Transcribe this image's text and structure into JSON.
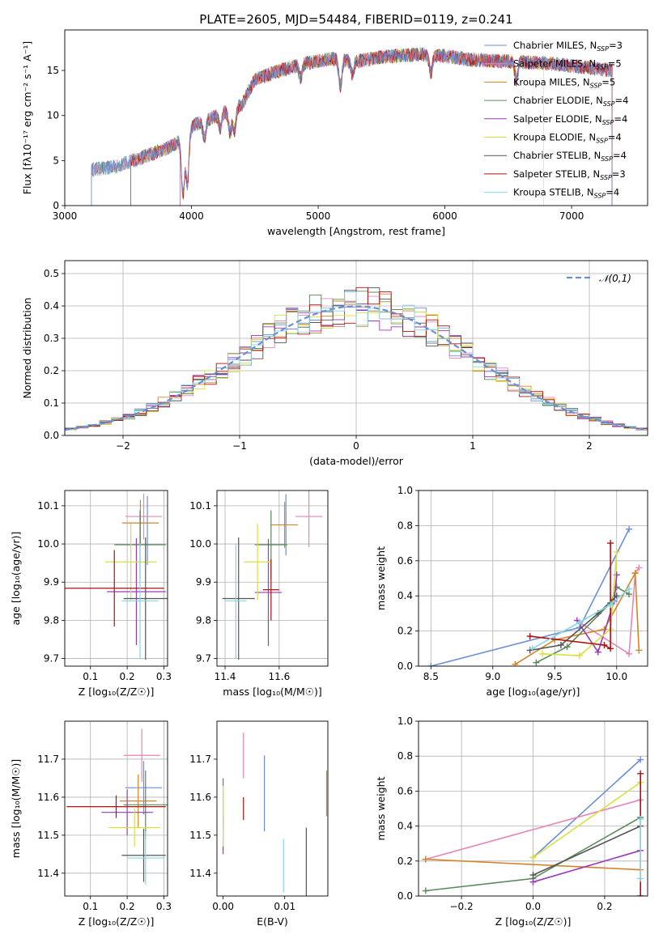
{
  "title": "PLATE=2605, MJD=54484, FIBERID=0119, z=0.241",
  "models": [
    {
      "name": "Chabrier MILES",
      "nssp": "3",
      "color": "#6a8fd8"
    },
    {
      "name": "Salpeter MILES",
      "nssp": "5",
      "color": "#e885b8"
    },
    {
      "name": "Kroupa MILES",
      "nssp": "5",
      "color": "#d4842a"
    },
    {
      "name": "Chabrier ELODIE",
      "nssp": "4",
      "color": "#5a8a5a"
    },
    {
      "name": "Salpeter ELODIE",
      "nssp": "4",
      "color": "#9a3ab8"
    },
    {
      "name": "Kroupa ELODIE",
      "nssp": "4",
      "color": "#d8e040"
    },
    {
      "name": "Chabrier STELIB",
      "nssp": "4",
      "color": "#555555"
    },
    {
      "name": "Salpeter STELIB",
      "nssp": "3",
      "color": "#b01010"
    },
    {
      "name": "Kroupa STELIB",
      "nssp": "4",
      "color": "#80d8e8"
    }
  ],
  "chart_data": [
    {
      "id": "spectrum",
      "type": "line",
      "xlabel": "wavelength [Angstrom, rest frame]",
      "ylabel": "Flux [fλ10⁻¹⁷ erg cm⁻² s⁻¹ A⁻¹]",
      "xlim": [
        3000,
        7600
      ],
      "ylim": [
        0,
        19.5
      ],
      "xticks": [
        3000,
        4000,
        5000,
        6000,
        7000
      ],
      "yticks": [
        0,
        5,
        10,
        15
      ],
      "x_start": 3210,
      "x_end": 7320,
      "continuum": [
        [
          3210,
          4.0
        ],
        [
          3400,
          4.3
        ],
        [
          3600,
          5.3
        ],
        [
          3800,
          6.3
        ],
        [
          3950,
          7.5
        ],
        [
          4000,
          8.8
        ],
        [
          4200,
          10.0
        ],
        [
          4400,
          11.2
        ],
        [
          4500,
          14.0
        ],
        [
          4700,
          15.0
        ],
        [
          4900,
          15.8
        ],
        [
          5100,
          16.3
        ],
        [
          5300,
          16.0
        ],
        [
          5500,
          16.5
        ],
        [
          5800,
          16.8
        ],
        [
          6000,
          16.6
        ],
        [
          6200,
          16.2
        ],
        [
          6500,
          16.0
        ],
        [
          6800,
          15.8
        ],
        [
          7000,
          15.5
        ],
        [
          7320,
          15.0
        ]
      ],
      "absorption_lines": [
        [
          3933,
          6.0
        ],
        [
          3968,
          5.5
        ],
        [
          4102,
          2.0
        ],
        [
          4227,
          1.5
        ],
        [
          4304,
          2.5
        ],
        [
          4340,
          2.5
        ],
        [
          4861,
          1.5
        ],
        [
          5175,
          3.0
        ],
        [
          5270,
          1.5
        ],
        [
          5890,
          2.0
        ],
        [
          6563,
          2.0
        ]
      ],
      "grid": false,
      "legend": "upper right"
    },
    {
      "id": "residuals",
      "type": "histogram",
      "xlabel": "(data-model)/error",
      "ylabel": "Normed distribution",
      "xlim": [
        -2.5,
        2.5
      ],
      "ylim": [
        0,
        0.54
      ],
      "xticks": [
        -2,
        -1,
        0,
        1,
        2
      ],
      "yticks": [
        0.0,
        0.1,
        0.2,
        0.3,
        0.4,
        0.5
      ],
      "reference": {
        "label": "𝒩(0,1)",
        "color": "#6a8fd8"
      },
      "bin_width": 0.1,
      "grid": true,
      "legend": "upper right"
    },
    {
      "id": "age-vs-Z",
      "type": "scatter",
      "xlabel": "Z [log₁₀(Z/Z☉)]",
      "ylabel": "age  [log₁₀(age/yr)]",
      "xlim": [
        0.03,
        0.31
      ],
      "ylim": [
        9.68,
        10.14
      ],
      "xticks": [
        0.1,
        0.2,
        0.3
      ],
      "yticks": [
        9.7,
        9.8,
        9.9,
        10.0,
        10.1
      ],
      "points": [
        {
          "model": 0,
          "x": 0.255,
          "y": 10.035,
          "xerr": 0.0,
          "yerr": 0.09
        },
        {
          "model": 1,
          "x": 0.245,
          "y": 10.072,
          "xerr": 0.05,
          "yerr": 0.06
        },
        {
          "model": 2,
          "x": 0.236,
          "y": 10.055,
          "xerr": 0.05,
          "yerr": 0.06
        },
        {
          "model": 3,
          "x": 0.235,
          "y": 9.998,
          "xerr": 0.07,
          "yerr": 0.09
        },
        {
          "model": 4,
          "x": 0.225,
          "y": 9.875,
          "xerr": 0.08,
          "yerr": 0.14
        },
        {
          "model": 5,
          "x": 0.21,
          "y": 9.953,
          "xerr": 0.07,
          "yerr": 0.1
        },
        {
          "model": 6,
          "x": 0.25,
          "y": 9.857,
          "xerr": 0.06,
          "yerr": 0.16
        },
        {
          "model": 7,
          "x": 0.165,
          "y": 9.884,
          "xerr": 0.135,
          "yerr": 0.1
        },
        {
          "model": 8,
          "x": 0.235,
          "y": 9.851,
          "xerr": 0.05,
          "yerr": 0.15
        }
      ],
      "grid": true
    },
    {
      "id": "age-vs-mass",
      "type": "scatter",
      "xlabel": "mass [log₁₀(M/M☉)]",
      "ylabel": "",
      "xlim": [
        11.37,
        11.78
      ],
      "ylim": [
        9.68,
        10.14
      ],
      "xticks": [
        11.4,
        11.6
      ],
      "yticks": [
        9.7,
        9.8,
        9.9,
        10.0,
        10.1
      ],
      "points": [
        {
          "model": 0,
          "x": 11.625,
          "y": 10.05,
          "xerr": 0.0,
          "yerr": 0.08
        },
        {
          "model": 1,
          "x": 11.71,
          "y": 10.072,
          "xerr": 0.05,
          "yerr": 0.08
        },
        {
          "model": 2,
          "x": 11.62,
          "y": 10.05,
          "xerr": 0.05,
          "yerr": 0.06
        },
        {
          "model": 3,
          "x": 11.57,
          "y": 9.998,
          "xerr": 0.06,
          "yerr": 0.09
        },
        {
          "model": 4,
          "x": 11.56,
          "y": 9.873,
          "xerr": 0.05,
          "yerr": 0.14
        },
        {
          "model": 5,
          "x": 11.52,
          "y": 9.953,
          "xerr": 0.05,
          "yerr": 0.1
        },
        {
          "model": 6,
          "x": 11.45,
          "y": 9.857,
          "xerr": 0.06,
          "yerr": 0.16
        },
        {
          "model": 7,
          "x": 11.57,
          "y": 9.88,
          "xerr": 0.03,
          "yerr": 0.08
        },
        {
          "model": 8,
          "x": 11.44,
          "y": 9.851,
          "xerr": 0.04,
          "yerr": 0.15
        }
      ],
      "grid": true
    },
    {
      "id": "weight-vs-age",
      "type": "line",
      "xlabel": "age  [log₁₀(age/yr)]",
      "ylabel": "mass weight",
      "xlim": [
        8.4,
        10.25
      ],
      "ylim": [
        0.0,
        1.0
      ],
      "xticks": [
        8.5,
        9.0,
        9.5,
        10.0
      ],
      "yticks": [
        0.0,
        0.2,
        0.4,
        0.6,
        0.8,
        1.0
      ],
      "series": [
        {
          "model": 0,
          "x": [
            8.5,
            9.7,
            10.1
          ],
          "y": [
            0.0,
            0.22,
            0.78
          ]
        },
        {
          "model": 1,
          "x": [
            9.7,
            10.1,
            10.15,
            10.18
          ],
          "y": [
            0.25,
            0.07,
            0.53,
            0.56
          ]
        },
        {
          "model": 2,
          "x": [
            9.18,
            9.5,
            9.9,
            10.15,
            10.18
          ],
          "y": [
            0.01,
            0.15,
            0.21,
            0.53,
            0.09
          ]
        },
        {
          "model": 3,
          "x": [
            9.35,
            9.6,
            9.95,
            10.0,
            10.1
          ],
          "y": [
            0.02,
            0.11,
            0.36,
            0.45,
            0.41
          ]
        },
        {
          "model": 4,
          "x": [
            9.68,
            9.85,
            9.98,
            10.0
          ],
          "y": [
            0.26,
            0.08,
            0.37,
            0.52
          ]
        },
        {
          "model": 5,
          "x": [
            9.4,
            9.7,
            9.95,
            10.0
          ],
          "y": [
            0.07,
            0.06,
            0.21,
            0.65
          ]
        },
        {
          "model": 6,
          "x": [
            9.3,
            9.55,
            9.85,
            10.0
          ],
          "y": [
            0.09,
            0.12,
            0.3,
            0.4
          ]
        },
        {
          "model": 7,
          "x": [
            9.3,
            9.9,
            9.95,
            9.95
          ],
          "y": [
            0.17,
            0.12,
            0.1,
            0.7
          ]
        },
        {
          "model": 8,
          "x": [
            9.32,
            9.7,
            9.95,
            10.1
          ],
          "y": [
            0.1,
            0.25,
            0.35,
            0.44
          ]
        }
      ],
      "grid": true
    },
    {
      "id": "mass-vs-Z",
      "type": "scatter",
      "xlabel": "Z [log₁₀(Z/Z☉)]",
      "ylabel": "mass [log₁₀(M/M☉)]",
      "xlim": [
        0.03,
        0.31
      ],
      "ylim": [
        11.34,
        11.8
      ],
      "xticks": [
        0.1,
        0.2,
        0.3
      ],
      "yticks": [
        11.4,
        11.5,
        11.6,
        11.7
      ],
      "points": [
        {
          "model": 0,
          "x": 0.245,
          "y": 11.625,
          "xerr": 0.05,
          "yerr": 0.07
        },
        {
          "model": 1,
          "x": 0.24,
          "y": 11.71,
          "xerr": 0.05,
          "yerr": 0.07
        },
        {
          "model": 2,
          "x": 0.23,
          "y": 11.59,
          "xerr": 0.05,
          "yerr": 0.07
        },
        {
          "model": 3,
          "x": 0.25,
          "y": 11.58,
          "xerr": 0.06,
          "yerr": 0.09
        },
        {
          "model": 4,
          "x": 0.2,
          "y": 11.56,
          "xerr": 0.07,
          "yerr": 0.06
        },
        {
          "model": 5,
          "x": 0.22,
          "y": 11.52,
          "xerr": 0.07,
          "yerr": 0.05
        },
        {
          "model": 6,
          "x": 0.245,
          "y": 11.447,
          "xerr": 0.06,
          "yerr": 0.07
        },
        {
          "model": 7,
          "x": 0.17,
          "y": 11.575,
          "xerr": 0.135,
          "yerr": 0.03
        },
        {
          "model": 8,
          "x": 0.25,
          "y": 11.44,
          "xerr": 0.05,
          "yerr": 0.07
        }
      ],
      "grid": true
    },
    {
      "id": "mass-vs-EBV",
      "type": "scatter",
      "xlabel": "E(B-V)",
      "ylabel": "",
      "xlim": [
        -0.001,
        0.017
      ],
      "ylim": [
        11.34,
        11.8
      ],
      "xticks": [
        0.0,
        0.01
      ],
      "yticks": [
        11.4,
        11.5,
        11.6,
        11.7
      ],
      "points": [
        {
          "model": 0,
          "x": 0.0067,
          "y": 11.61,
          "xerr": 0,
          "yerr": 0.1
        },
        {
          "model": 1,
          "x": 0.0033,
          "y": 11.71,
          "xerr": 0,
          "yerr": 0.06
        },
        {
          "model": 2,
          "x": 0.0168,
          "y": 11.61,
          "xerr": 0,
          "yerr": 0.06
        },
        {
          "model": 3,
          "x": 0.0,
          "y": 11.59,
          "xerr": 0,
          "yerr": 0.06
        },
        {
          "model": 4,
          "x": 0.0,
          "y": 11.5,
          "xerr": 0,
          "yerr": 0.05
        },
        {
          "model": 5,
          "x": 0.0,
          "y": 11.55,
          "xerr": 0,
          "yerr": 0.08
        },
        {
          "model": 6,
          "x": 0.0135,
          "y": 11.43,
          "xerr": 0,
          "yerr": 0.09
        },
        {
          "model": 7,
          "x": 0.0033,
          "y": 11.57,
          "xerr": 0,
          "yerr": 0.03
        },
        {
          "model": 8,
          "x": 0.0098,
          "y": 11.42,
          "xerr": 0,
          "yerr": 0.07
        }
      ],
      "grid": false
    },
    {
      "id": "weight-vs-Z",
      "type": "line",
      "xlabel": "Z [log₁₀(Z/Z☉)]",
      "ylabel": "mass weight",
      "xlim": [
        -0.32,
        0.32
      ],
      "ylim": [
        0.0,
        1.0
      ],
      "xticks": [
        -0.2,
        0.0,
        0.2
      ],
      "yticks": [
        0.0,
        0.2,
        0.4,
        0.6,
        0.8,
        1.0
      ],
      "series": [
        {
          "model": 0,
          "x": [
            0.0,
            0.3
          ],
          "y": [
            0.22,
            0.78
          ]
        },
        {
          "model": 1,
          "x": [
            -0.3,
            0.3
          ],
          "y": [
            0.21,
            0.55
          ]
        },
        {
          "model": 2,
          "x": [
            -0.3,
            0.3
          ],
          "y": [
            0.21,
            0.15
          ]
        },
        {
          "model": 3,
          "x": [
            -0.3,
            0.0,
            0.3
          ],
          "y": [
            0.03,
            0.1,
            0.45
          ]
        },
        {
          "model": 4,
          "x": [
            0.0,
            0.3
          ],
          "y": [
            0.08,
            0.26
          ]
        },
        {
          "model": 5,
          "x": [
            0.0,
            0.3
          ],
          "y": [
            0.22,
            0.65
          ]
        },
        {
          "model": 6,
          "x": [
            0.0,
            0.3
          ],
          "y": [
            0.12,
            0.4
          ]
        },
        {
          "model": 7,
          "x": [
            0.3,
            0.3
          ],
          "y": [
            0.0,
            0.7
          ]
        },
        {
          "model": 8,
          "x": [
            0.3,
            0.3
          ],
          "y": [
            0.1,
            0.44
          ]
        }
      ],
      "grid": true
    }
  ]
}
